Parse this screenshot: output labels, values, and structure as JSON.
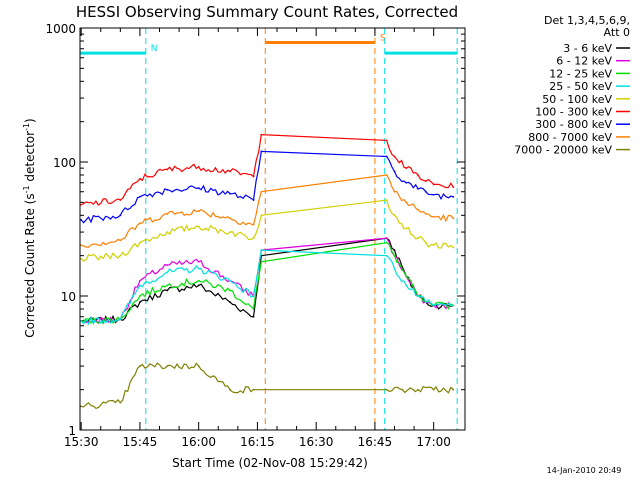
{
  "chart_data": {
    "type": "line",
    "title": "HESSI Observing Summary Count Rates, Corrected",
    "xlabel": "Start Time (02-Nov-08 15:29:42)",
    "ylabel": "Corrected Count Rate (s⁻¹ detector⁻¹)",
    "ylabel_parts": {
      "main": "Corrected Count Rate (s",
      "sup1": "-1",
      "mid": " detector",
      "sup2": "-1",
      "end": ")"
    },
    "yscale": "log",
    "xlim": [
      "15:29:42",
      "17:08:00"
    ],
    "ylim": [
      1,
      1000
    ],
    "xticks": [
      "15:30",
      "15:45",
      "16:00",
      "16:15",
      "16:30",
      "16:45",
      "17:00"
    ],
    "yticks": [
      "1",
      "10",
      "100",
      "1000"
    ],
    "legend_title": [
      "Det 1,3,4,5,6,9,",
      "Att 0"
    ],
    "legend_position": "right",
    "timestamp": "14-Jan-2010 20:49",
    "series": [
      {
        "name": "3 - 6 keV",
        "color": "#000000",
        "x": [
          "15:30",
          "15:40",
          "15:45",
          "15:52",
          "16:00",
          "16:08",
          "16:14",
          "16:16",
          "16:48",
          "16:50",
          "16:53",
          "16:56",
          "16:58",
          "17:00",
          "17:05"
        ],
        "y": [
          6.5,
          6.7,
          9,
          11,
          12,
          9,
          7,
          20,
          27,
          22,
          14,
          10,
          9,
          8.5,
          8.5
        ]
      },
      {
        "name": "6 - 12 keV",
        "color": "#e000e0",
        "x": [
          "15:30",
          "15:40",
          "15:45",
          "15:52",
          "16:00",
          "16:08",
          "16:14",
          "16:16",
          "16:48",
          "16:50",
          "16:53",
          "16:56",
          "16:58",
          "17:00",
          "17:05"
        ],
        "y": [
          6.5,
          6.7,
          13,
          17,
          18,
          13,
          10,
          22,
          27,
          20,
          14,
          10,
          9,
          8.5,
          8.5
        ]
      },
      {
        "name": "12 - 25 keV",
        "color": "#00e000",
        "x": [
          "15:30",
          "15:40",
          "15:45",
          "15:52",
          "16:00",
          "16:08",
          "16:14",
          "16:16",
          "16:48",
          "16:50",
          "16:53",
          "16:56",
          "16:58",
          "17:00",
          "17:05"
        ],
        "y": [
          6.5,
          6.7,
          10,
          12,
          13,
          11,
          8,
          18,
          25,
          20,
          14,
          10,
          9,
          8.5,
          8.5
        ]
      },
      {
        "name": "25 - 50 keV",
        "color": "#00e0e0",
        "x": [
          "15:30",
          "15:40",
          "15:45",
          "15:52",
          "16:00",
          "16:08",
          "16:14",
          "16:16",
          "16:48",
          "16:50",
          "16:53",
          "16:56",
          "16:58",
          "17:00",
          "17:05"
        ],
        "y": [
          6.5,
          6.7,
          12,
          15,
          16,
          13,
          10,
          22,
          20,
          16,
          12,
          10,
          9,
          8.5,
          8.5
        ]
      },
      {
        "name": "50 - 100 keV",
        "color": "#d0d000",
        "x": [
          "15:30",
          "15:40",
          "15:45",
          "15:52",
          "16:00",
          "16:08",
          "16:14",
          "16:16",
          "16:48",
          "16:50",
          "16:53",
          "16:56",
          "16:58",
          "17:00",
          "17:05"
        ],
        "y": [
          19,
          20,
          25,
          30,
          33,
          30,
          27,
          40,
          52,
          40,
          32,
          27,
          25,
          24,
          23
        ]
      },
      {
        "name": "100 - 300 keV",
        "color": "#ff0000",
        "x": [
          "15:30",
          "15:40",
          "15:45",
          "15:52",
          "16:00",
          "16:08",
          "16:14",
          "16:16",
          "16:48",
          "16:50",
          "16:53",
          "16:56",
          "16:58",
          "17:00",
          "17:05"
        ],
        "y": [
          48,
          52,
          75,
          88,
          92,
          85,
          78,
          160,
          145,
          110,
          90,
          80,
          72,
          68,
          65
        ]
      },
      {
        "name": "300 - 800 keV",
        "color": "#0000ff",
        "x": [
          "15:30",
          "15:40",
          "15:45",
          "15:52",
          "16:00",
          "16:08",
          "16:14",
          "16:16",
          "16:48",
          "16:50",
          "16:53",
          "16:56",
          "16:58",
          "17:00",
          "17:05"
        ],
        "y": [
          37,
          40,
          55,
          62,
          64,
          58,
          52,
          120,
          110,
          85,
          70,
          63,
          60,
          57,
          55
        ]
      },
      {
        "name": "800 - 7000 keV",
        "color": "#ff8000",
        "x": [
          "15:30",
          "15:40",
          "15:45",
          "15:52",
          "16:00",
          "16:08",
          "16:14",
          "16:16",
          "16:48",
          "16:50",
          "16:53",
          "16:56",
          "16:58",
          "17:00",
          "17:05"
        ],
        "y": [
          24,
          26,
          35,
          41,
          43,
          38,
          34,
          60,
          80,
          60,
          50,
          44,
          41,
          39,
          38
        ]
      },
      {
        "name": "7000 - 20000 keV",
        "color": "#808000",
        "x": [
          "15:30",
          "15:40",
          "15:45",
          "15:52",
          "16:00",
          "16:08",
          "16:14",
          "16:48",
          "16:52",
          "16:56",
          "17:00",
          "17:05"
        ],
        "y": [
          1.5,
          1.6,
          3,
          3,
          3,
          2,
          2,
          2,
          2,
          2,
          2,
          2
        ]
      }
    ],
    "annotations": [
      {
        "label": "N",
        "color": "#00e0e0",
        "start": "15:29:42",
        "end": "15:46:30",
        "level": 650
      },
      {
        "label": "S",
        "color": "#ff8000",
        "start": "16:17:00",
        "end": "16:45:00",
        "level": 780
      },
      {
        "label": "",
        "color": "#00e0e0",
        "start": "16:47:30",
        "end": "17:06:00",
        "level": 650
      }
    ]
  }
}
